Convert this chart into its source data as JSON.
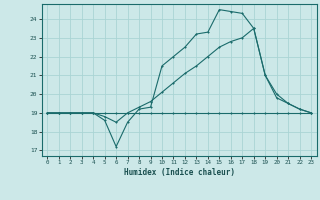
{
  "xlabel": "Humidex (Indice chaleur)",
  "bg_color": "#cce8e8",
  "grid_color": "#aad4d4",
  "line_color": "#1a6b6b",
  "xlim": [
    -0.5,
    23.5
  ],
  "ylim": [
    16.7,
    24.8
  ],
  "yticks": [
    17,
    18,
    19,
    20,
    21,
    22,
    23,
    24
  ],
  "xticks": [
    0,
    1,
    2,
    3,
    4,
    5,
    6,
    7,
    8,
    9,
    10,
    11,
    12,
    13,
    14,
    15,
    16,
    17,
    18,
    19,
    20,
    21,
    22,
    23
  ],
  "line1_x": [
    0,
    1,
    2,
    3,
    4,
    5,
    6,
    7,
    8,
    9,
    10,
    11,
    12,
    13,
    14,
    15,
    16,
    17,
    18,
    19,
    20,
    21,
    22,
    23
  ],
  "line1_y": [
    19.0,
    19.0,
    19.0,
    19.0,
    19.0,
    19.0,
    19.0,
    19.0,
    19.0,
    19.0,
    19.0,
    19.0,
    19.0,
    19.0,
    19.0,
    19.0,
    19.0,
    19.0,
    19.0,
    19.0,
    19.0,
    19.0,
    19.0,
    19.0
  ],
  "line2_x": [
    0,
    1,
    2,
    3,
    4,
    5,
    6,
    7,
    8,
    9,
    10,
    11,
    12,
    13,
    14,
    15,
    16,
    17,
    18,
    19,
    20,
    21,
    22,
    23
  ],
  "line2_y": [
    19.0,
    19.0,
    19.0,
    19.0,
    19.0,
    18.8,
    18.5,
    19.0,
    19.3,
    19.6,
    20.1,
    20.6,
    21.1,
    21.5,
    22.0,
    22.5,
    22.8,
    23.0,
    23.5,
    21.0,
    20.0,
    19.5,
    19.2,
    19.0
  ],
  "line3_x": [
    0,
    1,
    2,
    3,
    4,
    5,
    6,
    7,
    8,
    9,
    10,
    11,
    12,
    13,
    14,
    15,
    16,
    17,
    18,
    19,
    20,
    21,
    22,
    23
  ],
  "line3_y": [
    19.0,
    19.0,
    19.0,
    19.0,
    19.0,
    18.6,
    17.2,
    18.5,
    19.2,
    19.3,
    21.5,
    22.0,
    22.5,
    23.2,
    23.3,
    24.5,
    24.4,
    24.3,
    23.5,
    21.0,
    19.8,
    19.5,
    19.2,
    19.0
  ]
}
